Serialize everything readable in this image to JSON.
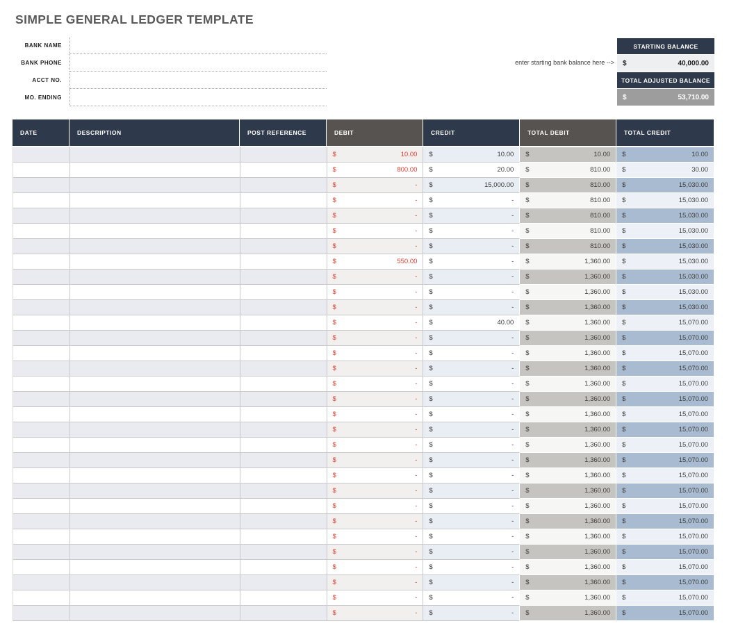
{
  "title": "SIMPLE GENERAL LEDGER TEMPLATE",
  "form": {
    "fields": [
      {
        "id": "bank-name",
        "label": "BANK NAME",
        "value": ""
      },
      {
        "id": "bank-phone",
        "label": "BANK PHONE",
        "value": ""
      },
      {
        "id": "acct-no",
        "label": "ACCT NO.",
        "value": ""
      },
      {
        "id": "mo-ending",
        "label": "MO. ENDING",
        "value": ""
      }
    ]
  },
  "balance": {
    "hint": "enter starting bank balance here -->",
    "starting_label": "STARTING BALANCE",
    "starting_currency": "$",
    "starting_value": "40,000.00",
    "adjusted_label": "TOTAL ADJUSTED BALANCE",
    "adjusted_currency": "$",
    "adjusted_value": "53,710.00"
  },
  "table": {
    "headers": [
      "DATE",
      "DESCRIPTION",
      "POST REFERENCE",
      "DEBIT",
      "CREDIT",
      "TOTAL DEBIT",
      "TOTAL CREDIT"
    ],
    "currency": "$",
    "rows": [
      [
        "10.00",
        "10.00",
        "10.00",
        "10.00"
      ],
      [
        "800.00",
        "20.00",
        "810.00",
        "30.00"
      ],
      [
        "-",
        "15,000.00",
        "810.00",
        "15,030.00"
      ],
      [
        "-",
        "-",
        "810.00",
        "15,030.00"
      ],
      [
        "-",
        "-",
        "810.00",
        "15,030.00"
      ],
      [
        "-",
        "-",
        "810.00",
        "15,030.00"
      ],
      [
        "-",
        "-",
        "810.00",
        "15,030.00"
      ],
      [
        "550.00",
        "-",
        "1,360.00",
        "15,030.00"
      ],
      [
        "-",
        "-",
        "1,360.00",
        "15,030.00"
      ],
      [
        "-",
        "-",
        "1,360.00",
        "15,030.00"
      ],
      [
        "-",
        "-",
        "1,360.00",
        "15,030.00"
      ],
      [
        "-",
        "40.00",
        "1,360.00",
        "15,070.00"
      ],
      [
        "-",
        "-",
        "1,360.00",
        "15,070.00"
      ],
      [
        "-",
        "-",
        "1,360.00",
        "15,070.00"
      ],
      [
        "-",
        "-",
        "1,360.00",
        "15,070.00"
      ],
      [
        "-",
        "-",
        "1,360.00",
        "15,070.00"
      ],
      [
        "-",
        "-",
        "1,360.00",
        "15,070.00"
      ],
      [
        "-",
        "-",
        "1,360.00",
        "15,070.00"
      ],
      [
        "-",
        "-",
        "1,360.00",
        "15,070.00"
      ],
      [
        "-",
        "-",
        "1,360.00",
        "15,070.00"
      ],
      [
        "-",
        "-",
        "1,360.00",
        "15,070.00"
      ],
      [
        "-",
        "-",
        "1,360.00",
        "15,070.00"
      ],
      [
        "-",
        "-",
        "1,360.00",
        "15,070.00"
      ],
      [
        "-",
        "-",
        "1,360.00",
        "15,070.00"
      ],
      [
        "-",
        "-",
        "1,360.00",
        "15,070.00"
      ],
      [
        "-",
        "-",
        "1,360.00",
        "15,070.00"
      ],
      [
        "-",
        "-",
        "1,360.00",
        "15,070.00"
      ],
      [
        "-",
        "-",
        "1,360.00",
        "15,070.00"
      ],
      [
        "-",
        "-",
        "1,360.00",
        "15,070.00"
      ],
      [
        "-",
        "-",
        "1,360.00",
        "15,070.00"
      ],
      [
        "-",
        "-",
        "1,360.00",
        "15,070.00"
      ]
    ]
  },
  "colors": {
    "navy_header": "#2e3a4c",
    "gray_header": "#575350",
    "title_gray": "#595959",
    "debit_red": "#e03a2e",
    "row_shade_left": "#e9ebf1",
    "row_shade_debit": "#f1f0ee",
    "row_shade_credit": "#e9edf4",
    "total_debit_shade": "#c5c4c0",
    "total_credit_shade": "#a9bbd1",
    "adjusted_value_bg": "#9d9d9d",
    "starting_value_bg": "#edeff1"
  }
}
